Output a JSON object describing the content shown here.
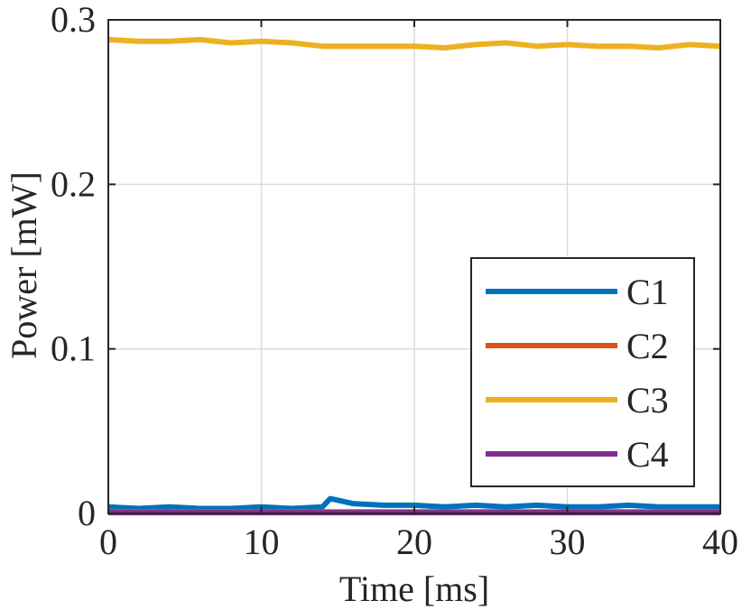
{
  "chart_data": {
    "type": "line",
    "xlabel": "Time [ms]",
    "ylabel": "Power [mW]",
    "xlim": [
      0,
      40
    ],
    "ylim": [
      0,
      0.3
    ],
    "xticks": [
      0,
      10,
      20,
      30,
      40
    ],
    "xtick_labels": [
      "0",
      "10",
      "20",
      "30",
      "40"
    ],
    "yticks": [
      0,
      0.1,
      0.2,
      0.3
    ],
    "ytick_labels": [
      "0",
      "0.1",
      "0.2",
      "0.3"
    ],
    "grid": true,
    "legend_position": "right-center",
    "series": [
      {
        "name": "C1",
        "color": "#0072BD",
        "x": [
          0,
          2,
          4,
          6,
          8,
          10,
          12,
          14,
          14.5,
          16,
          18,
          20,
          22,
          24,
          26,
          28,
          30,
          32,
          34,
          36,
          38,
          40
        ],
        "y": [
          0.004,
          0.003,
          0.004,
          0.003,
          0.003,
          0.004,
          0.003,
          0.004,
          0.009,
          0.006,
          0.005,
          0.005,
          0.004,
          0.005,
          0.004,
          0.005,
          0.004,
          0.004,
          0.005,
          0.004,
          0.004,
          0.004
        ]
      },
      {
        "name": "C2",
        "color": "#D95319",
        "x": [
          0,
          5,
          10,
          15,
          20,
          25,
          30,
          35,
          40
        ],
        "y": [
          0.001,
          0.001,
          0.001,
          0.001,
          0.001,
          0.001,
          0.001,
          0.001,
          0.001
        ]
      },
      {
        "name": "C3",
        "color": "#EDB120",
        "x": [
          0,
          2,
          4,
          6,
          8,
          10,
          12,
          14,
          16,
          18,
          20,
          22,
          24,
          26,
          28,
          30,
          32,
          34,
          36,
          38,
          40
        ],
        "y": [
          0.288,
          0.287,
          0.287,
          0.288,
          0.286,
          0.287,
          0.286,
          0.284,
          0.284,
          0.284,
          0.284,
          0.283,
          0.285,
          0.286,
          0.284,
          0.285,
          0.284,
          0.284,
          0.283,
          0.285,
          0.284
        ]
      },
      {
        "name": "C4",
        "color": "#7E2F8E",
        "x": [
          0,
          5,
          10,
          15,
          20,
          25,
          30,
          35,
          40
        ],
        "y": [
          0.0005,
          0.0005,
          0.0005,
          0.0005,
          0.0005,
          0.0005,
          0.0005,
          0.0005,
          0.0005
        ]
      }
    ]
  }
}
